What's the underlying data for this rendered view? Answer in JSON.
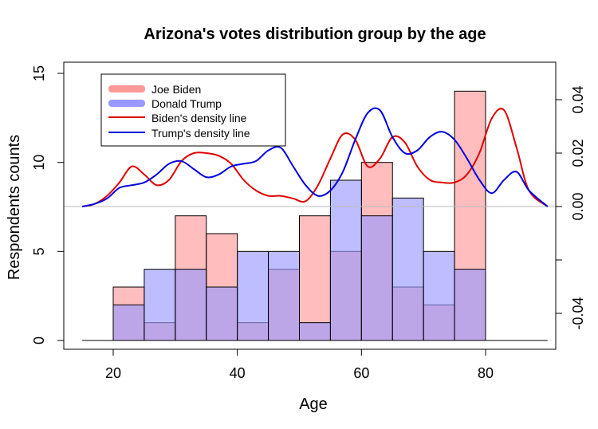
{
  "chart_data": {
    "type": "histogram+density",
    "title": "Arizona's votes distribution group by the age",
    "xlabel": "Age",
    "ylabel": "Respondents counts",
    "xlim": [
      15,
      90
    ],
    "ylim": [
      0,
      15
    ],
    "y2lim": [
      -0.055,
      0.055
    ],
    "x_ticks": [
      20,
      40,
      60,
      80
    ],
    "y_ticks": [
      0,
      5,
      10,
      15
    ],
    "y2_ticks": [
      -0.04,
      -0.02,
      0.0,
      0.02,
      0.04
    ],
    "y2_tick_labels": [
      "-0.04",
      "",
      "0.00",
      "0.02",
      "0.04"
    ],
    "bins": [
      [
        20,
        25
      ],
      [
        25,
        30
      ],
      [
        30,
        35
      ],
      [
        35,
        40
      ],
      [
        40,
        45
      ],
      [
        45,
        50
      ],
      [
        50,
        55
      ],
      [
        55,
        60
      ],
      [
        60,
        65
      ],
      [
        65,
        70
      ],
      [
        70,
        75
      ],
      [
        75,
        80
      ]
    ],
    "series": [
      {
        "name": "Joe Biden",
        "kind": "histogram",
        "color": "#ff9999",
        "values": [
          3,
          1,
          7,
          6,
          1,
          4,
          7,
          5,
          10,
          3,
          2,
          14
        ]
      },
      {
        "name": "Donald Trump",
        "kind": "histogram",
        "color": "#9999ff",
        "values": [
          2,
          4,
          4,
          3,
          5,
          5,
          1,
          9,
          7,
          8,
          5,
          4
        ]
      },
      {
        "name": "Biden's density line",
        "kind": "line",
        "color": "#e00000",
        "x": [
          15,
          17,
          19,
          21,
          23,
          25,
          27,
          29,
          31,
          33,
          35,
          37,
          39,
          41,
          43,
          45,
          47,
          49,
          51,
          53,
          55,
          57,
          59,
          61,
          63,
          65,
          67,
          69,
          71,
          73,
          75,
          77,
          79,
          81,
          83,
          85,
          87,
          90
        ],
        "y": [
          0.0,
          0.001,
          0.004,
          0.009,
          0.015,
          0.012,
          0.008,
          0.01,
          0.017,
          0.02,
          0.02,
          0.019,
          0.016,
          0.01,
          0.006,
          0.004,
          0.004,
          0.003,
          0.002,
          0.008,
          0.018,
          0.027,
          0.025,
          0.015,
          0.018,
          0.026,
          0.024,
          0.015,
          0.01,
          0.009,
          0.009,
          0.012,
          0.02,
          0.033,
          0.036,
          0.022,
          0.006,
          0.0
        ]
      },
      {
        "name": "Trump's density line",
        "kind": "line",
        "color": "#0000e0",
        "x": [
          15,
          17,
          19,
          21,
          23,
          25,
          27,
          29,
          31,
          33,
          35,
          37,
          39,
          41,
          43,
          45,
          47,
          49,
          51,
          53,
          55,
          57,
          59,
          61,
          63,
          65,
          67,
          69,
          71,
          73,
          75,
          77,
          79,
          81,
          83,
          85,
          87,
          90
        ],
        "y": [
          0.0,
          0.001,
          0.003,
          0.007,
          0.008,
          0.009,
          0.012,
          0.016,
          0.017,
          0.014,
          0.011,
          0.012,
          0.015,
          0.016,
          0.017,
          0.021,
          0.022,
          0.015,
          0.008,
          0.004,
          0.006,
          0.013,
          0.025,
          0.035,
          0.036,
          0.026,
          0.02,
          0.021,
          0.026,
          0.028,
          0.025,
          0.018,
          0.01,
          0.005,
          0.01,
          0.013,
          0.006,
          0.0
        ]
      }
    ],
    "legend": {
      "position": "top-left",
      "items": [
        "Joe Biden",
        "Donald Trump",
        "Biden's density line",
        "Trump's density line"
      ]
    },
    "grid": false
  }
}
